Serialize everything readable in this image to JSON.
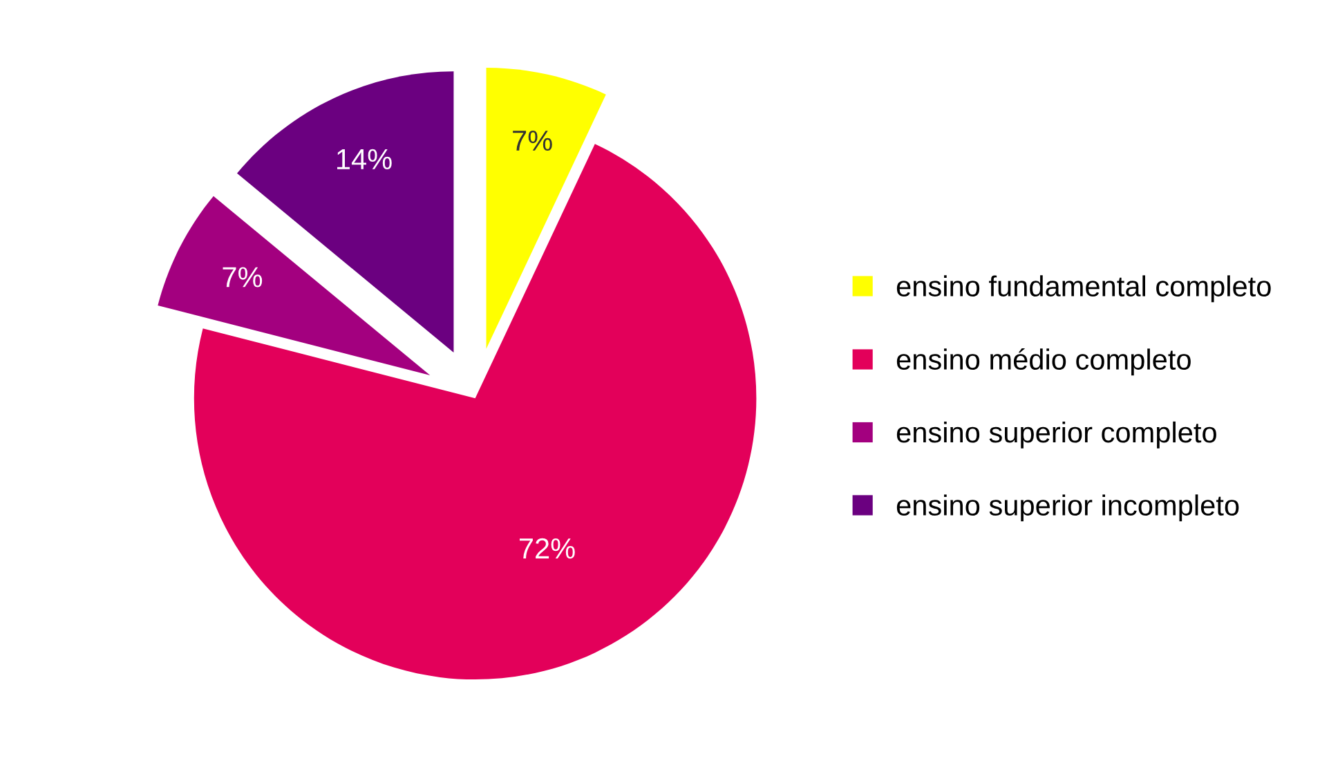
{
  "chart_data": {
    "type": "pie",
    "categories": [
      "ensino fundamental completo",
      "ensino médio completo",
      "ensino superior completo",
      "ensino superior incompleto"
    ],
    "values": [
      7,
      72,
      7,
      14
    ],
    "value_labels": [
      "7%",
      "72%",
      "7%",
      "14%"
    ],
    "colors": [
      "#ffff00",
      "#e3005a",
      "#a3007f",
      "#6b0080"
    ],
    "legend": "right"
  }
}
